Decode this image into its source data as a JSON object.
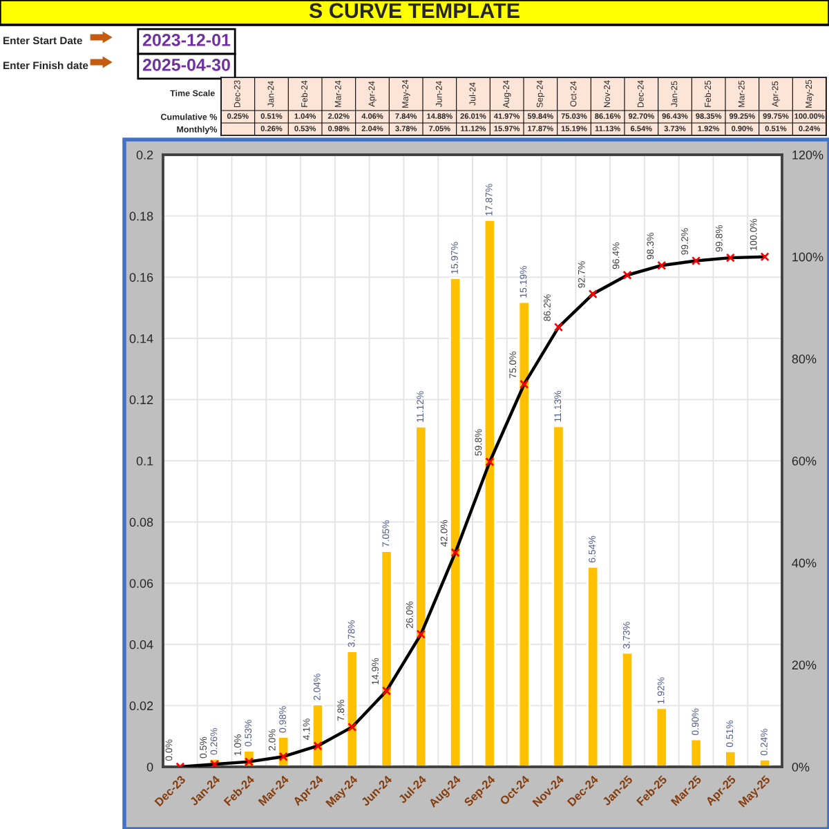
{
  "chart_data": [
    {
      "type": "other",
      "title": "S CURVE TEMPLATE",
      "annotations": [
        "Enter Start Date",
        "2023-12-01",
        "Enter Finish date",
        "2025-04-30"
      ]
    },
    {
      "type": "other",
      "xlabel": "Time Scale",
      "color": "#fce4d6",
      "categories": [
        "Dec-23",
        "Jan-24",
        "Feb-24",
        "Mar-24",
        "Apr-24",
        "May-24",
        "Jun-24",
        "Jul-24",
        "Aug-24",
        "Sep-24",
        "Oct-24",
        "Nov-24",
        "Dec-24",
        "Jan-25",
        "Feb-25",
        "Mar-25",
        "Apr-25",
        "May-25"
      ],
      "y_categories": [
        "Cumulative %",
        "Monthly%"
      ],
      "cell_labels": [
        [
          "0.25%",
          "0.51%",
          "1.04%",
          "2.02%",
          "4.06%",
          "7.84%",
          "14.88%",
          "26.01%",
          "41.97%",
          "59.84%",
          "75.03%",
          "86.16%",
          "92.70%",
          "96.43%",
          "98.35%",
          "99.25%",
          "99.75%",
          "100.00%"
        ],
        [
          null,
          "0.26%",
          "0.53%",
          "0.98%",
          "2.04%",
          "3.78%",
          "7.05%",
          "11.12%",
          "15.97%",
          "17.87%",
          "15.19%",
          "11.13%",
          "6.54%",
          "3.73%",
          "1.92%",
          "0.90%",
          "0.51%",
          "0.24%"
        ]
      ]
    },
    {
      "type": "bar",
      "categories": [
        "Dec-23",
        "Jan-24",
        "Feb-24",
        "Mar-24",
        "Apr-24",
        "May-24",
        "Jun-24",
        "Jul-24",
        "Aug-24",
        "Sep-24",
        "Oct-24",
        "Nov-24",
        "Dec-24",
        "Jan-25",
        "Feb-25",
        "Mar-25",
        "Apr-25",
        "May-25"
      ],
      "series": [
        {
          "type": "bar",
          "color": "#ffc000",
          "values": [
            null,
            0.0026,
            0.0053,
            0.0098,
            0.0204,
            0.0378,
            0.0705,
            0.1112,
            0.1597,
            0.1787,
            0.1519,
            0.1113,
            0.0654,
            0.0373,
            0.0192,
            0.009,
            0.0051,
            0.0024
          ],
          "value_labels": [
            null,
            "0.26%",
            "0.53%",
            "0.98%",
            "2.04%",
            "3.78%",
            "7.05%",
            "11.12%",
            "15.97%",
            "17.87%",
            "15.19%",
            "11.13%",
            "6.54%",
            "3.73%",
            "1.92%",
            "0.90%",
            "0.51%",
            "0.24%"
          ]
        },
        {
          "type": "line",
          "axis": "y2",
          "color": "#000000",
          "colors": [
            "#ff0000",
            "#ff0000",
            "#ff0000",
            "#ff0000",
            "#ff0000",
            "#ff0000",
            "#ff0000",
            "#ff0000",
            "#ff0000",
            "#ff0000",
            "#ff0000",
            "#ff0000",
            "#ff0000",
            "#ff0000",
            "#ff0000",
            "#ff0000",
            "#ff0000",
            "#ff0000"
          ],
          "values": [
            0,
            0.5,
            1.0,
            2.0,
            4.1,
            7.8,
            14.9,
            26.0,
            42.0,
            59.8,
            75.0,
            86.2,
            92.7,
            96.4,
            98.3,
            99.2,
            99.8,
            100.0
          ],
          "value_labels": [
            "0.0%",
            "0.5%",
            "1.0%",
            "2.0%",
            "4.1%",
            "7.8%",
            "14.9%",
            "26.0%",
            "42.0%",
            "59.8%",
            "75.0%",
            "86.2%",
            "92.7%",
            "96.4%",
            "98.3%",
            "99.2%",
            "99.8%",
            "100.0%"
          ]
        }
      ],
      "ylim": [
        0,
        0.2
      ],
      "yticks": [
        0,
        0.02,
        0.04,
        0.06,
        0.08,
        0.1,
        0.12,
        0.14,
        0.16,
        0.18,
        0.2
      ],
      "y2lim": [
        0,
        120
      ],
      "y2ticks": [
        {
          "value": 0,
          "label": "0%"
        },
        {
          "value": 20,
          "label": "20%"
        },
        {
          "value": 40,
          "label": "40%"
        },
        {
          "value": 60,
          "label": "60%"
        },
        {
          "value": 80,
          "label": "80%"
        },
        {
          "value": 100,
          "label": "100%"
        },
        {
          "value": 120,
          "label": "120%"
        }
      ],
      "grid": true,
      "marker": "cross"
    }
  ]
}
